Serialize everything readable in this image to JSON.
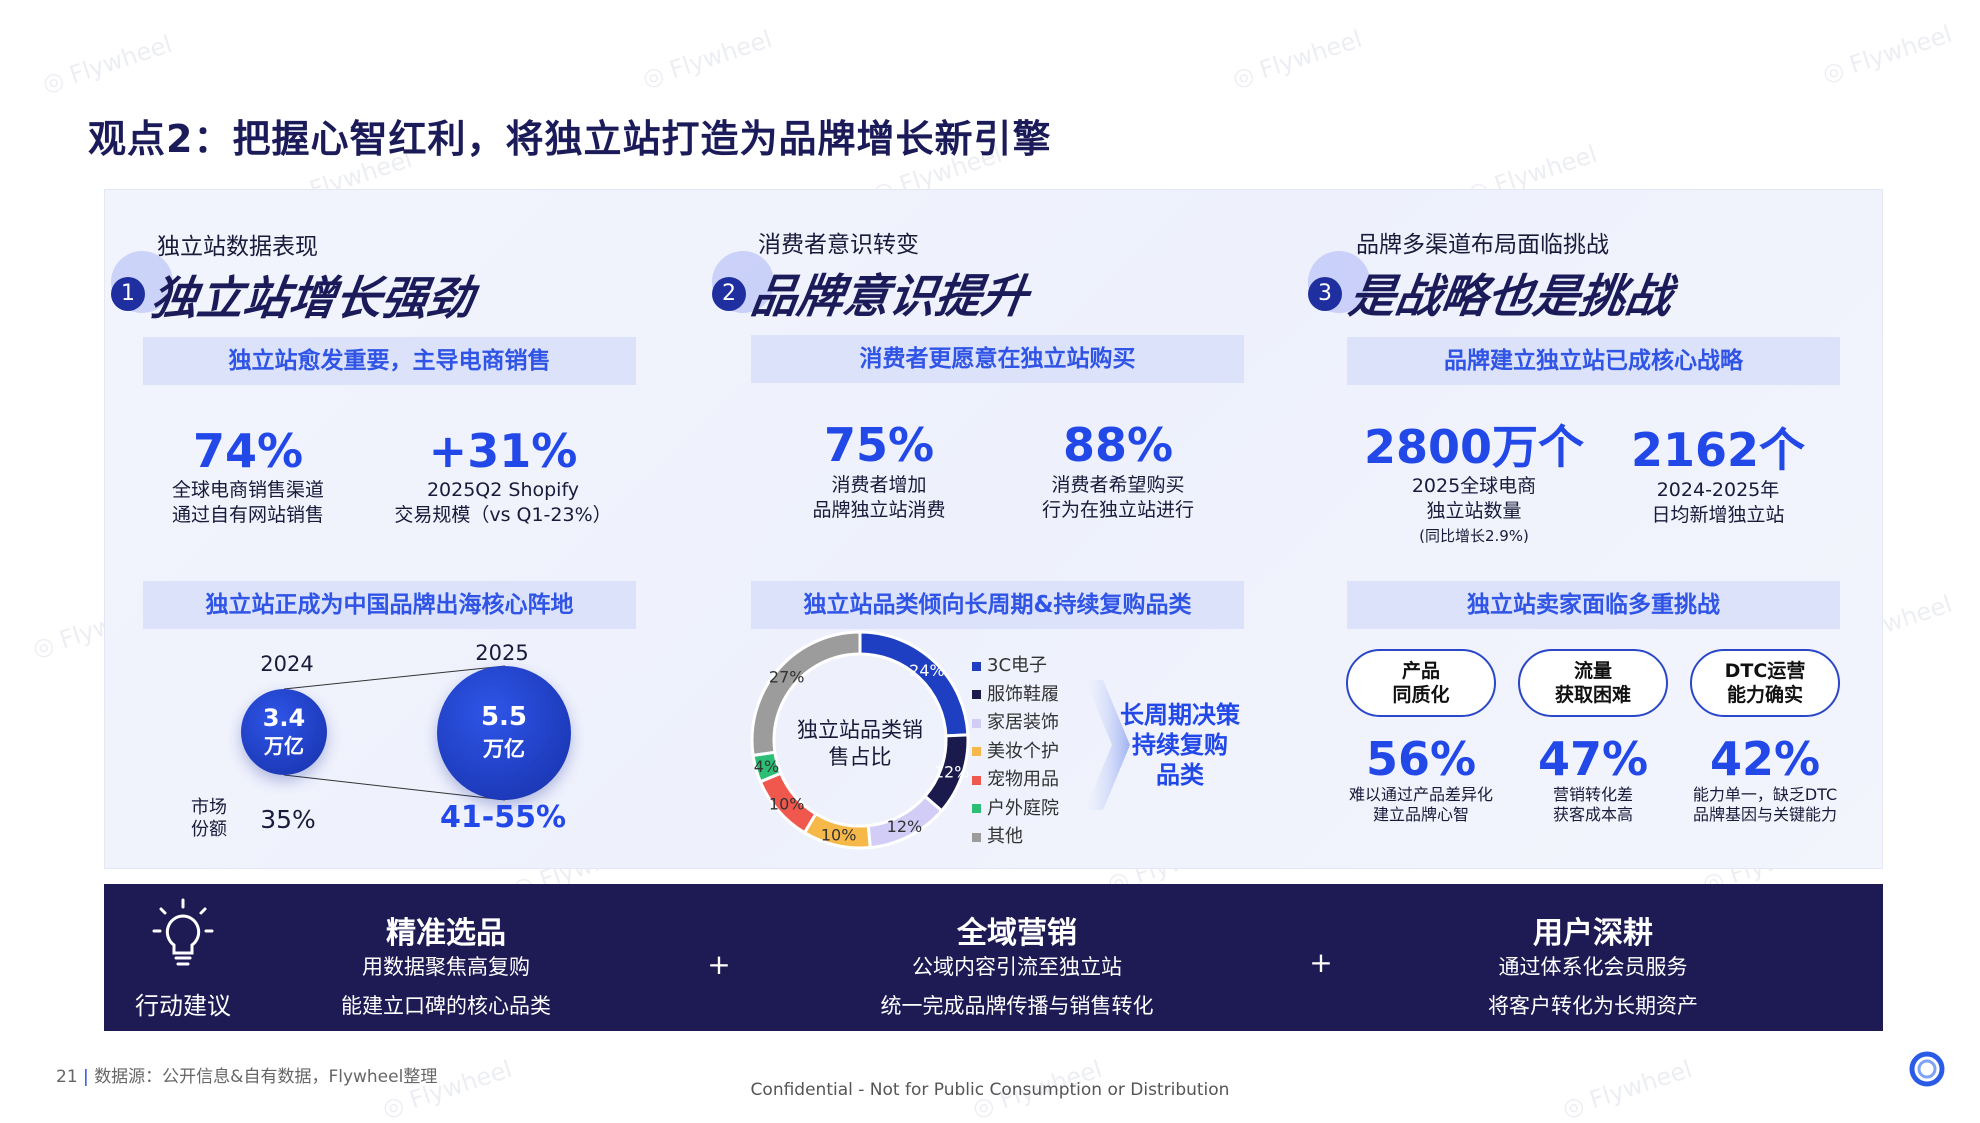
{
  "title": "观点2：把握心智红利，将独立站打造为品牌增长新引擎",
  "watermark": "Flywheel",
  "sections": [
    {
      "number": "1",
      "kicker": "独立站数据表现",
      "heading": "独立站增长强劲",
      "band1": "独立站愈发重要，主导电商销售",
      "stats": [
        {
          "value": "74%",
          "lines": [
            "全球电商销售渠道",
            "通过自有网站销售"
          ]
        },
        {
          "value": "+31%",
          "lines": [
            "2025Q2 Shopify",
            "交易规模（vs Q1-23%）"
          ]
        }
      ],
      "band2": "独立站正成为中国品牌出海核心阵地",
      "compare": {
        "years": [
          "2024",
          "2025"
        ],
        "values": [
          "3.4",
          "5.5"
        ],
        "unit": "万亿",
        "share_label": "市场份额",
        "shares": [
          "35%",
          "41-55%"
        ]
      }
    },
    {
      "number": "2",
      "kicker": "消费者意识转变",
      "heading": "品牌意识提升",
      "band1": "消费者更愿意在独立站购买",
      "stats": [
        {
          "value": "75%",
          "lines": [
            "消费者增加",
            "品牌独立站消费"
          ]
        },
        {
          "value": "88%",
          "lines": [
            "消费者希望购买",
            "行为在独立站进行"
          ]
        }
      ],
      "band2": "独立站品类倾向长周期&持续复购品类",
      "callout": [
        "长周期决策",
        "持续复购",
        "品类"
      ]
    },
    {
      "number": "3",
      "kicker": "品牌多渠道布局面临挑战",
      "heading": "是战略也是挑战",
      "band1": "品牌建立独立站已成核心战略",
      "stats": [
        {
          "value": "2800万个",
          "lines": [
            "2025全球电商",
            "独立站数量"
          ],
          "note": "(同比增长2.9%)"
        },
        {
          "value": "2162个",
          "lines": [
            "2024-2025年",
            "日均新增独立站"
          ]
        }
      ],
      "band2": "独立站卖家面临多重挑战",
      "challenges": [
        {
          "title": [
            "产品",
            "同质化"
          ],
          "value": "56%",
          "lines": [
            "难以通过产品差异化",
            "建立品牌心智"
          ]
        },
        {
          "title": [
            "流量",
            "获取困难"
          ],
          "value": "47%",
          "lines": [
            "营销转化差",
            "获客成本高"
          ]
        },
        {
          "title": [
            "DTC运营",
            "能力确实"
          ],
          "value": "42%",
          "lines": [
            "能力单一，缺乏DTC",
            "品牌基因与关键能力"
          ]
        }
      ]
    }
  ],
  "chart_data": {
    "type": "pie",
    "title": "独立站品类销售占比",
    "donut": true,
    "categories": [
      "3C电子",
      "服饰鞋履",
      "家居装饰",
      "美妆个护",
      "宠物用品",
      "户外庭院",
      "其他"
    ],
    "values": [
      24,
      12,
      12,
      10,
      10,
      4,
      27
    ],
    "colors": [
      "#1f3fc2",
      "#1b1a4c",
      "#d2cdf6",
      "#f7b84a",
      "#f0584e",
      "#2bbf75",
      "#9c9c9c"
    ],
    "data_labels": [
      "24%",
      "12%",
      "12%",
      "10%",
      "10%",
      "4%",
      "27%"
    ],
    "legend": "right"
  },
  "action": {
    "label": "行动建议",
    "icon": "lightbulb-icon",
    "items": [
      {
        "title": "精准选品",
        "lines": [
          "用数据聚焦高复购",
          "能建立口碑的核心品类"
        ]
      },
      {
        "title": "全域营销",
        "lines": [
          "公域内容引流至独立站",
          "统一完成品牌传播与销售转化"
        ]
      },
      {
        "title": "用户深耕",
        "lines": [
          "通过体系化会员服务",
          "将客户转化为长期资产"
        ]
      }
    ],
    "plus": "+"
  },
  "footer": {
    "page": "21",
    "source": "数据源：公开信息&自有数据，Flywheel整理",
    "confidential": "Confidential - Not for Public Consumption or Distribution"
  }
}
